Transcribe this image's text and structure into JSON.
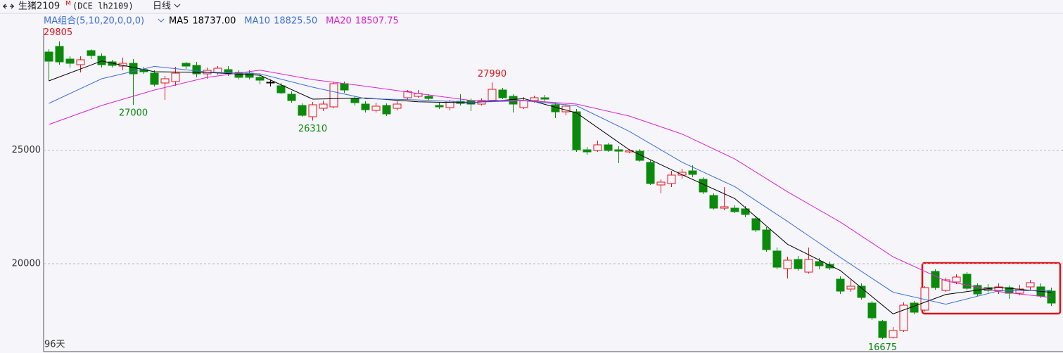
{
  "chart_data": {
    "type": "candlestick",
    "title": "生猪2109",
    "title_sup": "M",
    "subtitle": "(DCE lh2109)",
    "period": "日线",
    "indicator": "MA组合(5,10,20,0,0,0)",
    "bar_count": "96天",
    "categories": [
      null,
      null,
      null,
      null,
      null,
      null,
      null,
      null,
      null,
      null,
      null,
      null,
      null,
      null,
      null,
      null,
      null,
      null,
      null,
      null,
      null,
      null,
      null,
      null,
      null,
      null,
      null,
      null,
      null,
      null,
      null,
      null,
      null,
      null,
      null,
      null,
      null,
      null,
      null,
      null,
      null,
      null,
      null,
      null,
      null,
      null,
      null,
      null,
      null,
      null,
      null,
      null,
      null,
      null,
      null,
      null,
      null,
      null,
      null,
      null,
      null,
      null,
      null,
      null,
      null,
      null,
      null,
      null,
      null,
      null,
      null,
      null,
      null,
      null,
      null,
      null,
      null,
      null,
      null,
      null,
      null,
      null,
      null,
      null,
      null,
      null,
      null,
      null,
      null,
      null,
      null,
      null,
      null,
      null,
      null,
      null
    ],
    "open": [
      29331,
      29579,
      29021,
      28773,
      29393,
      29145,
      28897,
      28711,
      28835,
      28556,
      28401,
      27967,
      28029,
      28835,
      28742,
      28370,
      28432,
      28556,
      28432,
      28401,
      28215,
      27998,
      27843,
      27471,
      26975,
      26479,
      26851,
      26913,
      27936,
      27285,
      27037,
      26758,
      26975,
      26851,
      27316,
      27378,
      27378,
      26975,
      26882,
      27161,
      27192,
      27037,
      27192,
      27657,
      27378,
      26882,
      27192,
      27316,
      27006,
      26696,
      26696,
      25022,
      24991,
      25239,
      25022,
      24929,
      24960,
      24464,
      23472,
      23534,
      23906,
      24092,
      23720,
      23007,
      22449,
      22449,
      22418,
      21984,
      21488,
      20558,
      19783,
      20186,
      19628,
      20093,
      19969,
      19318,
      18884,
      19008,
      18264,
      17458,
      16745,
      17055,
      18264,
      17954,
      19659,
      18822,
      19194,
      19535,
      19039,
      18946,
      18822,
      18946,
      18698,
      18977,
      18977,
      18791
    ],
    "high": [
      29455,
      29805,
      29145,
      29145,
      29455,
      29269,
      28990,
      29083,
      29021,
      28680,
      28525,
      28277,
      28680,
      28897,
      28897,
      28649,
      28711,
      28711,
      28525,
      28525,
      28339,
      28122,
      27967,
      27595,
      27068,
      27130,
      27192,
      27998,
      28029,
      27378,
      27161,
      27099,
      27068,
      27161,
      27657,
      27657,
      27471,
      27099,
      27223,
      27471,
      27285,
      27285,
      27990,
      27750,
      27471,
      27347,
      27409,
      27440,
      27099,
      27037,
      26820,
      25146,
      25425,
      25332,
      25177,
      25053,
      25053,
      24557,
      23720,
      24092,
      24185,
      24340,
      23813,
      23100,
      23379,
      22573,
      22542,
      22108,
      21612,
      20713,
      20310,
      20341,
      20713,
      20248,
      20093,
      19442,
      19318,
      19132,
      18357,
      17520,
      17210,
      18295,
      18357,
      19008,
      19752,
      19380,
      19535,
      19628,
      19132,
      19101,
      19132,
      19039,
      19070,
      19287,
      19132,
      18946
    ],
    "low": [
      28060,
      28773,
      28649,
      28432,
      29021,
      28649,
      28649,
      28525,
      27000,
      28370,
      27812,
      27223,
      27843,
      28587,
      28215,
      28153,
      28339,
      28277,
      28122,
      28122,
      27905,
      27812,
      27471,
      27099,
      26479,
      26310,
      26727,
      26851,
      27533,
      26975,
      26665,
      26665,
      26510,
      26758,
      27223,
      27316,
      27192,
      26820,
      26758,
      26975,
      26727,
      26975,
      27130,
      27254,
      26665,
      26820,
      27099,
      27161,
      26417,
      26541,
      24929,
      24805,
      24929,
      24929,
      24433,
      24867,
      24495,
      23472,
      23100,
      23379,
      23751,
      23813,
      23069,
      22387,
      22356,
      22232,
      22046,
      21395,
      20527,
      19752,
      19349,
      19690,
      19566,
      19752,
      19721,
      18667,
      18760,
      18419,
      17520,
      16675,
      16700,
      16993,
      17768,
      17892,
      18853,
      18760,
      19101,
      18822,
      18574,
      18729,
      18667,
      18450,
      18605,
      18822,
      18481,
      18140
    ],
    "close": [
      28928,
      28897,
      28835,
      28990,
      29176,
      28773,
      28742,
      28835,
      28370,
      28463,
      27905,
      28153,
      28401,
      28711,
      28370,
      28525,
      28618,
      28401,
      28215,
      28215,
      28091,
      27998,
      27533,
      27192,
      26541,
      27006,
      27037,
      27936,
      27657,
      27099,
      26789,
      26944,
      26603,
      27037,
      27595,
      27502,
      27285,
      26913,
      27161,
      27068,
      27037,
      27161,
      27688,
      27316,
      27037,
      27192,
      27316,
      27254,
      26696,
      26944,
      25022,
      24929,
      25239,
      24991,
      24960,
      24991,
      24557,
      23534,
      23596,
      23906,
      24030,
      23937,
      23162,
      22449,
      22511,
      22294,
      22170,
      21488,
      20620,
      19845,
      20155,
      19783,
      20186,
      19907,
      19814,
      18791,
      19008,
      18512,
      17613,
      16745,
      17055,
      18171,
      17861,
      18946,
      18946,
      19287,
      19411,
      18915,
      18667,
      18822,
      18977,
      18698,
      18884,
      19163,
      18574,
      18264
    ],
    "up_color": "#e8141e",
    "down_color": "#0a8a0a",
    "series": [
      {
        "name": "MA5",
        "label_value": "18737.00",
        "color": "#000000",
        "x": [
          0,
          5,
          10,
          15,
          20,
          25,
          30,
          35,
          40,
          45,
          50,
          55,
          60,
          65,
          70,
          75,
          80,
          85,
          90,
          95
        ],
        "values": [
          28060,
          28934,
          28463,
          28432,
          28308,
          27254,
          27304,
          27136,
          27093,
          27279,
          26647,
          25022,
          23925,
          22871,
          20856,
          19696,
          17787,
          18642,
          18959,
          18737
        ]
      },
      {
        "name": "MA10",
        "label_value": "18825.50",
        "color": "#3c6fd6",
        "x": [
          0,
          5,
          10,
          15,
          20,
          25,
          30,
          35,
          40,
          45,
          50,
          55,
          60,
          65,
          70,
          75,
          80,
          85,
          90,
          95
        ],
        "values": [
          27068,
          28153,
          28699,
          28448,
          28370,
          27781,
          27279,
          27220,
          27115,
          27186,
          26962,
          25834,
          24473,
          23398,
          21863,
          20276,
          18741,
          18214,
          18800,
          18825.5
        ]
      },
      {
        "name": "MA20",
        "label_value": "18507.75",
        "color": "#e020d0",
        "x": [
          0,
          5,
          10,
          15,
          20,
          25,
          30,
          35,
          40,
          45,
          50,
          55,
          60,
          65,
          70,
          75,
          80,
          85,
          90,
          95
        ],
        "values": [
          26138,
          26975,
          27657,
          28215,
          28534,
          28114,
          27824,
          27502,
          27195,
          27201,
          27037,
          26510,
          25716,
          24616,
          23168,
          21835,
          20301,
          19244,
          18769,
          18507.75
        ]
      }
    ],
    "ylim": [
      16125,
      30385
    ],
    "yticks": [
      20000,
      25000
    ],
    "grid": true
  }
}
